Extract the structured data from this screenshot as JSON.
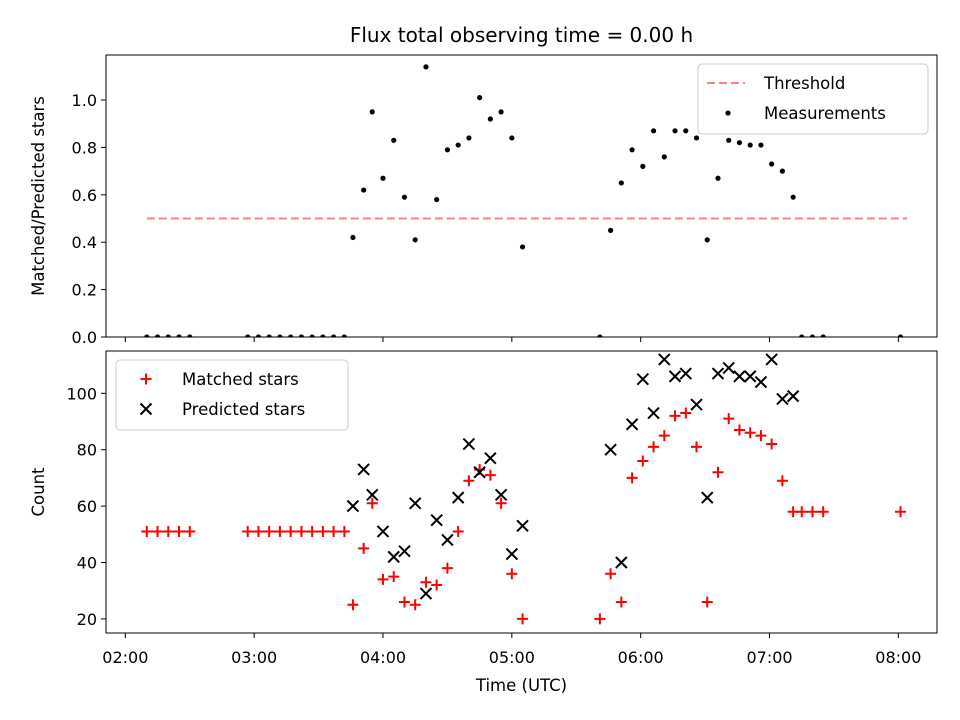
{
  "chart_data": [
    {
      "type": "scatter",
      "title": "Flux total observing time = 0.00 h",
      "xlabel": "",
      "ylabel": "Matched/Predicted stars",
      "ylim": [
        0,
        1.19
      ],
      "yticks": [
        "0.0",
        "0.2",
        "0.4",
        "0.6",
        "0.8",
        "1.0"
      ],
      "xlim": [
        "01:51",
        "08:18"
      ],
      "legend": "top-right",
      "threshold": {
        "name": "Threshold",
        "value": 0.5,
        "x": [
          "02:10",
          "08:04"
        ],
        "color": "#ff7f7f",
        "style": "dashed"
      },
      "series": [
        {
          "name": "Measurements",
          "color": "#000000",
          "marker": "dot",
          "points": [
            [
              "02:10",
              0
            ],
            [
              "02:15",
              0
            ],
            [
              "02:20",
              0
            ],
            [
              "02:25",
              0
            ],
            [
              "02:30",
              0
            ],
            [
              "02:57",
              0
            ],
            [
              "03:02",
              0
            ],
            [
              "03:07",
              0
            ],
            [
              "03:12",
              0
            ],
            [
              "03:17",
              0
            ],
            [
              "03:22",
              0
            ],
            [
              "03:27",
              0
            ],
            [
              "03:32",
              0
            ],
            [
              "03:37",
              0
            ],
            [
              "03:42",
              0
            ],
            [
              "03:46",
              0.42
            ],
            [
              "03:51",
              0.62
            ],
            [
              "03:55",
              0.95
            ],
            [
              "04:00",
              0.67
            ],
            [
              "04:05",
              0.83
            ],
            [
              "04:10",
              0.59
            ],
            [
              "04:15",
              0.41
            ],
            [
              "04:20",
              1.14
            ],
            [
              "04:25",
              0.58
            ],
            [
              "04:30",
              0.79
            ],
            [
              "04:35",
              0.81
            ],
            [
              "04:40",
              0.84
            ],
            [
              "04:45",
              1.01
            ],
            [
              "04:50",
              0.92
            ],
            [
              "04:55",
              0.95
            ],
            [
              "05:00",
              0.84
            ],
            [
              "05:05",
              0.38
            ],
            [
              "05:41",
              0
            ],
            [
              "05:46",
              0.45
            ],
            [
              "05:51",
              0.65
            ],
            [
              "05:56",
              0.79
            ],
            [
              "06:01",
              0.72
            ],
            [
              "06:06",
              0.87
            ],
            [
              "06:11",
              0.76
            ],
            [
              "06:16",
              0.87
            ],
            [
              "06:21",
              0.87
            ],
            [
              "06:26",
              0.84
            ],
            [
              "06:31",
              0.41
            ],
            [
              "06:36",
              0.67
            ],
            [
              "06:41",
              0.83
            ],
            [
              "06:46",
              0.82
            ],
            [
              "06:51",
              0.81
            ],
            [
              "06:56",
              0.81
            ],
            [
              "07:01",
              0.73
            ],
            [
              "07:06",
              0.7
            ],
            [
              "07:11",
              0.59
            ],
            [
              "07:15",
              0
            ],
            [
              "07:20",
              0
            ],
            [
              "07:25",
              0
            ],
            [
              "08:01",
              0
            ]
          ]
        }
      ]
    },
    {
      "type": "scatter",
      "title": "",
      "xlabel": "Time (UTC)",
      "ylabel": "Count",
      "ylim": [
        15,
        115
      ],
      "yticks": [
        "20",
        "40",
        "60",
        "80",
        "100"
      ],
      "xlim": [
        "01:51",
        "08:18"
      ],
      "xticks": [
        "02:00",
        "03:00",
        "04:00",
        "05:00",
        "06:00",
        "07:00",
        "08:00"
      ],
      "legend": "top-left",
      "series": [
        {
          "name": "Matched stars",
          "color": "#ff0000",
          "marker": "plus",
          "points": [
            [
              "02:10",
              51
            ],
            [
              "02:15",
              51
            ],
            [
              "02:20",
              51
            ],
            [
              "02:25",
              51
            ],
            [
              "02:30",
              51
            ],
            [
              "02:57",
              51
            ],
            [
              "03:02",
              51
            ],
            [
              "03:07",
              51
            ],
            [
              "03:12",
              51
            ],
            [
              "03:17",
              51
            ],
            [
              "03:22",
              51
            ],
            [
              "03:27",
              51
            ],
            [
              "03:32",
              51
            ],
            [
              "03:37",
              51
            ],
            [
              "03:42",
              51
            ],
            [
              "03:46",
              25
            ],
            [
              "03:51",
              45
            ],
            [
              "03:55",
              61
            ],
            [
              "04:00",
              34
            ],
            [
              "04:05",
              35
            ],
            [
              "04:10",
              26
            ],
            [
              "04:15",
              25
            ],
            [
              "04:20",
              33
            ],
            [
              "04:25",
              32
            ],
            [
              "04:30",
              38
            ],
            [
              "04:35",
              51
            ],
            [
              "04:40",
              69
            ],
            [
              "04:45",
              73
            ],
            [
              "04:50",
              71
            ],
            [
              "04:55",
              61
            ],
            [
              "05:00",
              36
            ],
            [
              "05:05",
              20
            ],
            [
              "05:41",
              20
            ],
            [
              "05:46",
              36
            ],
            [
              "05:51",
              26
            ],
            [
              "05:56",
              70
            ],
            [
              "06:01",
              76
            ],
            [
              "06:06",
              81
            ],
            [
              "06:11",
              85
            ],
            [
              "06:16",
              92
            ],
            [
              "06:21",
              93
            ],
            [
              "06:26",
              81
            ],
            [
              "06:31",
              26
            ],
            [
              "06:36",
              72
            ],
            [
              "06:41",
              91
            ],
            [
              "06:46",
              87
            ],
            [
              "06:51",
              86
            ],
            [
              "06:56",
              85
            ],
            [
              "07:01",
              82
            ],
            [
              "07:06",
              69
            ],
            [
              "07:11",
              58
            ],
            [
              "07:15",
              58
            ],
            [
              "07:20",
              58
            ],
            [
              "07:25",
              58
            ],
            [
              "08:01",
              58
            ]
          ]
        },
        {
          "name": "Predicted stars",
          "color": "#000000",
          "marker": "x",
          "points": [
            [
              "03:46",
              60
            ],
            [
              "03:51",
              73
            ],
            [
              "03:55",
              64
            ],
            [
              "04:00",
              51
            ],
            [
              "04:05",
              42
            ],
            [
              "04:10",
              44
            ],
            [
              "04:15",
              61
            ],
            [
              "04:20",
              29
            ],
            [
              "04:25",
              55
            ],
            [
              "04:30",
              48
            ],
            [
              "04:35",
              63
            ],
            [
              "04:40",
              82
            ],
            [
              "04:45",
              72
            ],
            [
              "04:50",
              77
            ],
            [
              "04:55",
              64
            ],
            [
              "05:00",
              43
            ],
            [
              "05:05",
              53
            ],
            [
              "05:46",
              80
            ],
            [
              "05:51",
              40
            ],
            [
              "05:56",
              89
            ],
            [
              "06:01",
              105
            ],
            [
              "06:06",
              93
            ],
            [
              "06:11",
              112
            ],
            [
              "06:16",
              106
            ],
            [
              "06:21",
              107
            ],
            [
              "06:26",
              96
            ],
            [
              "06:31",
              63
            ],
            [
              "06:36",
              107
            ],
            [
              "06:41",
              109
            ],
            [
              "06:46",
              106
            ],
            [
              "06:51",
              106
            ],
            [
              "06:56",
              104
            ],
            [
              "07:01",
              112
            ],
            [
              "07:06",
              98
            ],
            [
              "07:11",
              99
            ]
          ]
        }
      ]
    }
  ]
}
